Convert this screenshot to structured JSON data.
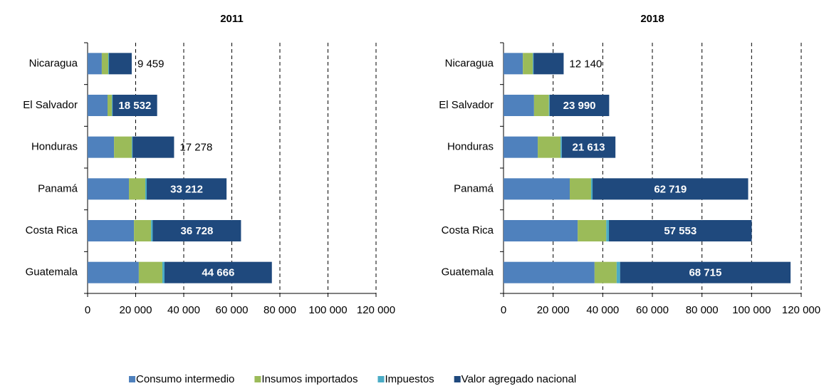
{
  "chart_data": [
    {
      "type": "stacked-bar-horizontal",
      "title": "2011",
      "categories": [
        "Nicaragua",
        "El Salvador",
        "Honduras",
        "Panamá",
        "Costa Rica",
        "Guatemala"
      ],
      "series": [
        {
          "name": "Consumo intermedio",
          "color": "#4f81bd",
          "values": [
            5900,
            8300,
            11000,
            17200,
            19300,
            21300
          ]
        },
        {
          "name": "Insumos importados",
          "color": "#9bbb59",
          "values": [
            2700,
            1800,
            7400,
            6800,
            7100,
            9800
          ]
        },
        {
          "name": "Impuestos",
          "color": "#4bacc6",
          "values": [
            300,
            300,
            300,
            600,
            700,
            900
          ]
        },
        {
          "name": "Valor agregado nacional",
          "color": "#1f497d",
          "values": [
            9459,
            18532,
            17278,
            33212,
            36728,
            44666
          ],
          "value_labels": [
            "9 459",
            "18 532",
            "17 278",
            "33 212",
            "36 728",
            "44 666"
          ]
        }
      ],
      "xlim": [
        0,
        120000
      ],
      "xticks": [
        0,
        {
          "value": 20000,
          "label": "20 000"
        },
        {
          "value": 40000,
          "label": "40 000"
        },
        {
          "value": 60000,
          "label": "60 000"
        },
        {
          "value": 80000,
          "label": "80 000"
        },
        {
          "value": 100000,
          "label": "100 000"
        },
        {
          "value": 120000,
          "label": "120 000"
        }
      ],
      "grid": true
    },
    {
      "type": "stacked-bar-horizontal",
      "title": "2018",
      "categories": [
        "Nicaragua",
        "El Salvador",
        "Honduras",
        "Panamá",
        "Costa Rica",
        "Guatemala"
      ],
      "series": [
        {
          "color": "#4f81bd",
          "values": [
            7800,
            12300,
            13800,
            26700,
            29900,
            36700
          ]
        },
        {
          "color": "#9bbb59",
          "values": [
            4000,
            6000,
            9200,
            8600,
            11500,
            8900
          ]
        },
        {
          "color": "#4bacc6",
          "values": [
            300,
            300,
            500,
            600,
            1100,
            1400
          ]
        },
        {
          "color": "#1f497d",
          "values": [
            12140,
            23990,
            21613,
            62719,
            57553,
            68715
          ],
          "value_labels": [
            "12 140",
            "23 990",
            "21 613",
            "62 719",
            "57 553",
            "68 715"
          ]
        }
      ],
      "xlim": [
        0,
        120000
      ],
      "xticks": [
        0,
        {
          "value": 20000,
          "label": "20 000"
        },
        {
          "value": 40000,
          "label": "40 000"
        },
        {
          "value": 60000,
          "label": "60 000"
        },
        {
          "value": 80000,
          "label": "80 000"
        },
        {
          "value": 100000,
          "label": "100 000"
        },
        {
          "value": 120000,
          "label": "120 000"
        }
      ],
      "grid": true
    }
  ]
}
